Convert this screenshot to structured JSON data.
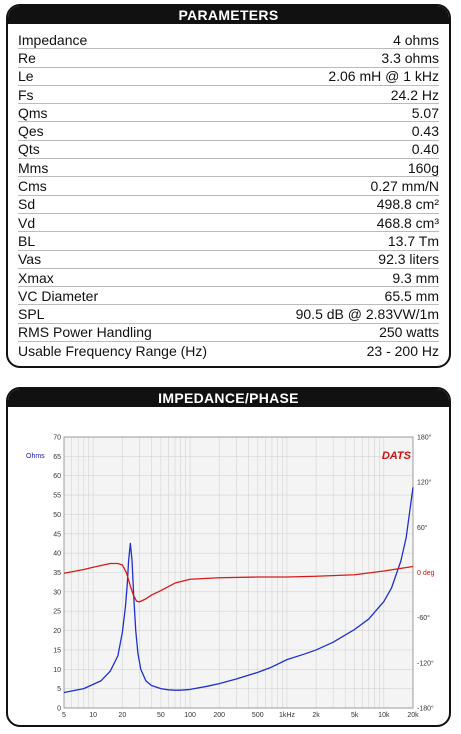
{
  "parameters": {
    "title": "PARAMETERS",
    "rows": [
      {
        "name": "Impedance",
        "value": "4 ohms"
      },
      {
        "name": "Re",
        "value": "3.3 ohms"
      },
      {
        "name": "Le",
        "value": "2.06 mH @ 1 kHz"
      },
      {
        "name": "Fs",
        "value": "24.2 Hz"
      },
      {
        "name": "Qms",
        "value": "5.07"
      },
      {
        "name": "Qes",
        "value": "0.43"
      },
      {
        "name": "Qts",
        "value": "0.40"
      },
      {
        "name": "Mms",
        "value": "160g"
      },
      {
        "name": "Cms",
        "value": "0.27 mm/N"
      },
      {
        "name": "Sd",
        "value": "498.8 cm²"
      },
      {
        "name": "Vd",
        "value": "468.8 cm³"
      },
      {
        "name": "BL",
        "value": "13.7 Tm"
      },
      {
        "name": "Vas",
        "value": "92.3 liters"
      },
      {
        "name": "Xmax",
        "value": "9.3 mm"
      },
      {
        "name": "VC Diameter",
        "value": "65.5 mm"
      },
      {
        "name": "SPL",
        "value": "90.5 dB @ 2.83VW/1m"
      },
      {
        "name": "RMS Power Handling",
        "value": "250 watts"
      },
      {
        "name": "Usable Frequency Range (Hz)",
        "value": "23 - 200 Hz"
      }
    ]
  },
  "impedance_panel": {
    "title": "IMPEDANCE/PHASE",
    "brand": "DATS",
    "unit_left": "Ohms"
  },
  "colors": {
    "impedance": "#1f2fd0",
    "phase": "#d81a1a",
    "grid": "#d4d4d4"
  },
  "chart_data": {
    "type": "line",
    "title": "IMPEDANCE/PHASE",
    "x_scale": "log",
    "xlim": [
      5,
      20000
    ],
    "x_ticks": [
      5,
      10,
      20,
      50,
      100,
      200,
      500,
      1000,
      2000,
      5000,
      10000,
      20000
    ],
    "x_tick_labels": [
      "5",
      "10",
      "20",
      "50",
      "100",
      "200",
      "500",
      "1kHz",
      "2k",
      "5k",
      "10k",
      "20k"
    ],
    "ylim": [
      0,
      70
    ],
    "y_ticks": [
      0,
      5,
      10,
      15,
      20,
      25,
      30,
      35,
      40,
      45,
      50,
      55,
      60,
      65,
      70
    ],
    "ylabel": "Ohms",
    "y2lim": [
      -180,
      180
    ],
    "y2_ticks": [
      180,
      120,
      60,
      0,
      -60,
      -120,
      -180
    ],
    "y2_tick_labels": [
      "180°",
      "120°",
      "60°",
      "0 deg",
      "-60°",
      "-120°",
      "-180°"
    ],
    "grid": true,
    "series": [
      {
        "axis": "left",
        "x": [
          5,
          8,
          12,
          15,
          18,
          20,
          21.5,
          22.5,
          23.2,
          24.2,
          25.2,
          26.2,
          27.5,
          29,
          31,
          35,
          40,
          50,
          60,
          70,
          80,
          100,
          150,
          200,
          300,
          500,
          700,
          1000,
          1500,
          2000,
          3000,
          5000,
          7000,
          10000,
          12000,
          15000,
          17000,
          20000
        ],
        "values": [
          4.0,
          5.0,
          7.0,
          9.5,
          13.5,
          19.5,
          26.0,
          32.0,
          38.0,
          42.5,
          38.0,
          29.0,
          20.0,
          14.0,
          10.0,
          7.0,
          5.8,
          5.0,
          4.7,
          4.6,
          4.6,
          4.8,
          5.6,
          6.3,
          7.5,
          9.2,
          10.6,
          12.5,
          13.9,
          15.0,
          17.0,
          20.3,
          23.0,
          27.5,
          31.0,
          38.0,
          44.0,
          57.0
        ]
      },
      {
        "axis": "right",
        "x": [
          5,
          8,
          10,
          15,
          18,
          20,
          22,
          24.2,
          26,
          28,
          30,
          35,
          40,
          50,
          70,
          100,
          200,
          500,
          1000,
          2000,
          5000,
          10000,
          20000
        ],
        "values": [
          -1,
          4,
          7,
          12,
          12,
          10,
          0,
          -18,
          -30,
          -38,
          -39,
          -35,
          -30,
          -24,
          -14,
          -9,
          -7,
          -6,
          -6,
          -5,
          -3,
          2,
          8
        ]
      }
    ]
  }
}
